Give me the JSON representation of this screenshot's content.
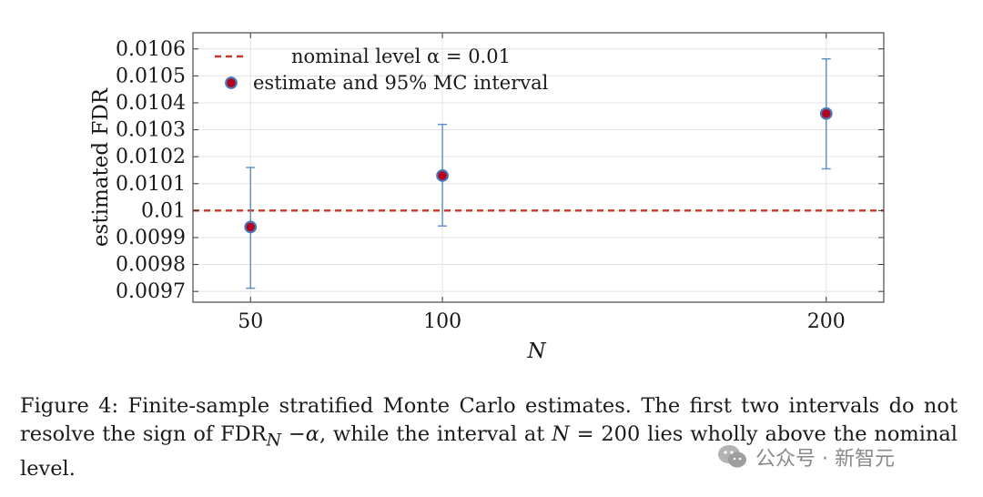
{
  "chart_data": {
    "type": "scatter",
    "xlabel": "N",
    "ylabel": "estimated FDR",
    "x_ticks": [
      50,
      100,
      200
    ],
    "x_tick_labels": [
      "50",
      "100",
      "200"
    ],
    "xlim": [
      35,
      215
    ],
    "y_ticks": [
      0.0097,
      0.0098,
      0.0099,
      0.01,
      0.0101,
      0.0102,
      0.0103,
      0.0104,
      0.0105,
      0.0106
    ],
    "y_tick_labels": [
      "0.0097",
      "0.0098",
      "0.0099",
      "0.01",
      "0.0101",
      "0.0102",
      "0.0103",
      "0.0104",
      "0.0105",
      "0.0106"
    ],
    "ylim": [
      0.00966,
      0.01066
    ],
    "grid": true,
    "legend_position": "top-left",
    "reference_line": {
      "name": "nominal level α = 0.01",
      "y": 0.01,
      "color": "#c0392b",
      "style": "dashed"
    },
    "series": [
      {
        "name": "estimate and 95% MC interval",
        "x": [
          50,
          100,
          200
        ],
        "y": [
          0.009939,
          0.01013,
          0.01036
        ],
        "err_low": [
          0.009712,
          0.009943,
          0.010155
        ],
        "err_high": [
          0.01016,
          0.01032,
          0.010563
        ],
        "marker_fill": "#b5001f",
        "marker_edge": "#4a78b8",
        "errorbar_color": "#5b8cc6"
      }
    ]
  },
  "legend": {
    "line_label": "nominal level α = 0.01",
    "marker_label": "estimate and 95% MC interval"
  },
  "caption": {
    "figure_label": "Figure 4:",
    "sentence1": "Finite-sample stratified Monte Carlo estimates.",
    "sentence2_start": "The first two intervals do not resolve the sign of FDR",
    "sub_n": "N",
    "minus_alpha": " −α",
    "sentence2_mid": ", while the interval at ",
    "n_eq": "N",
    "eq_value": " = 200",
    "sentence2_end": " lies wholly above the nominal level."
  },
  "watermark": {
    "text": "公众号 · 新智元"
  }
}
